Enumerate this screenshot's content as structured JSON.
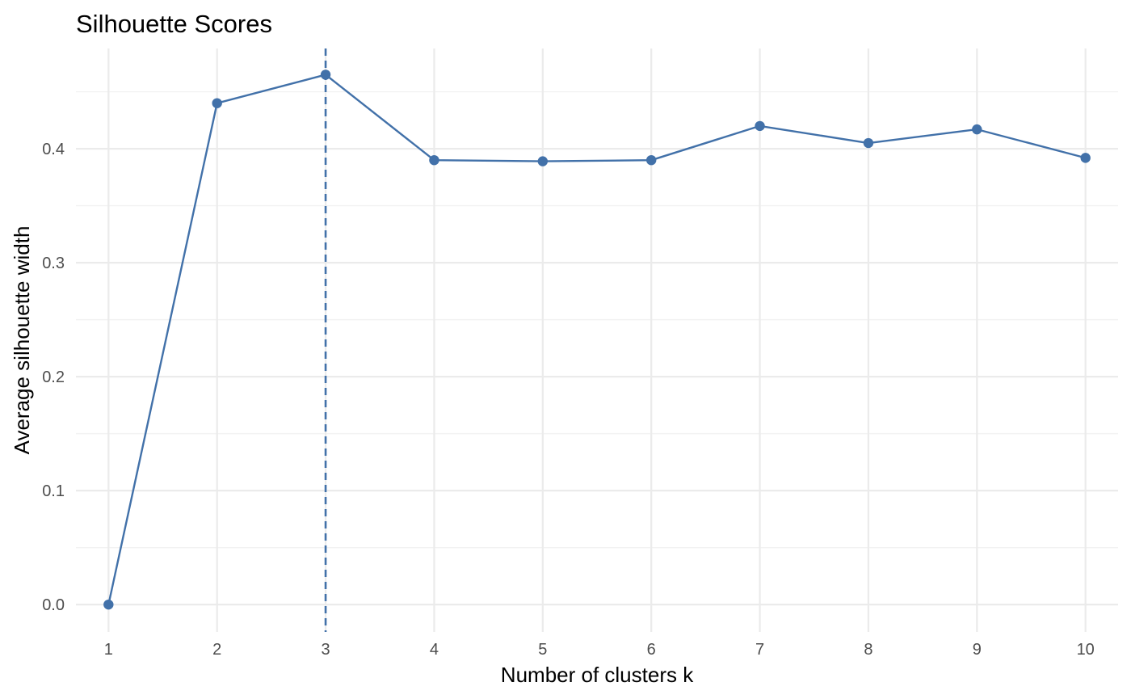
{
  "chart_data": {
    "type": "line",
    "title": "Silhouette Scores",
    "xlabel": "Number of clusters k",
    "ylabel": "Average silhouette width",
    "x": [
      1,
      2,
      3,
      4,
      5,
      6,
      7,
      8,
      9,
      10
    ],
    "series": [
      {
        "values": [
          0.0,
          0.44,
          0.465,
          0.39,
          0.389,
          0.39,
          0.42,
          0.405,
          0.417,
          0.392
        ]
      }
    ],
    "x_ticks": [
      "1",
      "2",
      "3",
      "4",
      "5",
      "6",
      "7",
      "8",
      "9",
      "10"
    ],
    "y_ticks": [
      "0.0",
      "0.1",
      "0.2",
      "0.3",
      "0.4"
    ],
    "y_tick_values": [
      0.0,
      0.1,
      0.2,
      0.3,
      0.4
    ],
    "xlim": [
      0.7,
      10.3
    ],
    "ylim": [
      -0.024,
      0.488
    ],
    "vline_x": 3,
    "grid": true,
    "legend": "none",
    "colors": {
      "series": "#4271a9",
      "vline": "#4271a9",
      "grid_major": "#ebebeb",
      "grid_minor": "#f2f2f2"
    }
  }
}
